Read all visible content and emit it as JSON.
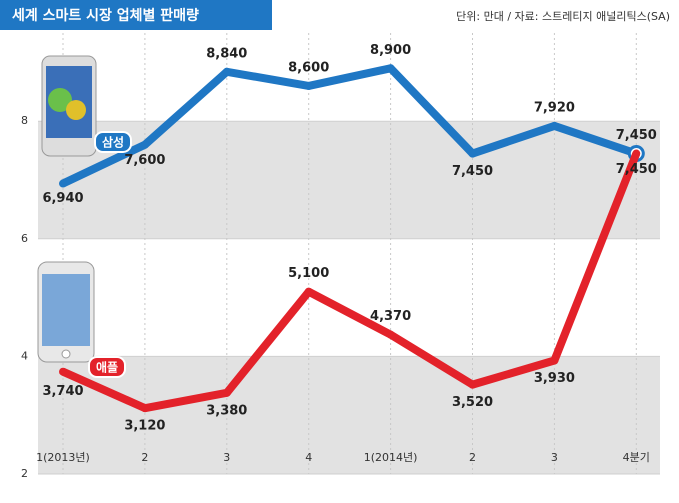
{
  "chart_data": {
    "type": "line",
    "title": "세계 스마트 시장 업체별 판매량",
    "subtitle": "단위: 만대 / 자료: 스트레티지 애널리틱스(SA)",
    "categories": [
      "1(2013년)",
      "2",
      "3",
      "4",
      "1(2014년)",
      "2",
      "3",
      "4분기"
    ],
    "series": [
      {
        "name": "삼성",
        "color": "#1f77c4",
        "values": [
          6.94,
          7.6,
          8.84,
          8.6,
          8.9,
          7.45,
          7.92,
          7.45
        ],
        "value_labels": [
          "6,940",
          "7,600",
          "8,840",
          "8,600",
          "8,900",
          "7,450",
          "7,920",
          "7,450"
        ]
      },
      {
        "name": "애플",
        "color": "#e3222a",
        "values": [
          3.74,
          3.12,
          3.38,
          5.1,
          4.37,
          3.52,
          3.93,
          7.45
        ],
        "value_labels": [
          "3,740",
          "3,120",
          "3,380",
          "5,100",
          "4,370",
          "3,520",
          "3,930",
          "7,450"
        ]
      }
    ],
    "ylim": [
      2,
      9.5
    ],
    "yticks": [
      2,
      4,
      6,
      8
    ],
    "grid": true
  }
}
